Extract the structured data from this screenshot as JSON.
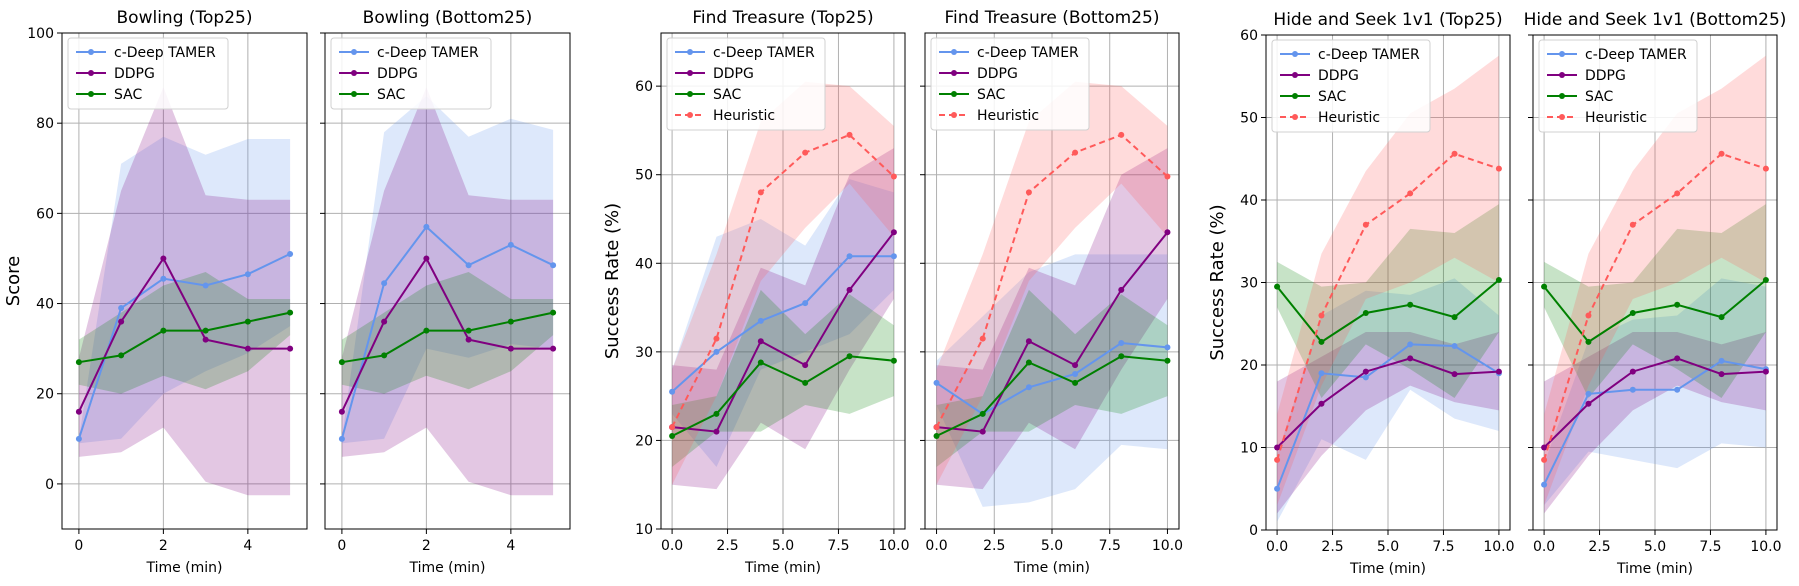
{
  "figure": {
    "description_title": "Six-panel line chart comparing c-Deep TAMER, DDPG, SAC and Heuristic"
  },
  "colors": {
    "c-Deep TAMER": "#6495ED",
    "DDPG": "#800080",
    "SAC": "#008000",
    "Heuristic": "#FF5A5A"
  },
  "chart_data": [
    {
      "type": "line",
      "title": "Bowling (Top25)",
      "xlabel": "Time (min)",
      "ylabel": "Score",
      "xlim": [
        -0.4,
        5.4
      ],
      "ylim": [
        -10,
        100
      ],
      "xticks": [
        0,
        2,
        4
      ],
      "xtick_labels": [
        "0",
        "2",
        "4"
      ],
      "yticks": [
        0,
        20,
        40,
        60,
        80,
        100
      ],
      "ytick_labels": [
        "0",
        "20",
        "40",
        "60",
        "80",
        "100"
      ],
      "legend": "top-left",
      "series": [
        {
          "name": "c-Deep TAMER",
          "x": [
            0,
            1,
            2,
            3,
            4,
            5
          ],
          "y": [
            10,
            39,
            45.5,
            44,
            46.5,
            51
          ],
          "lower": [
            9,
            10,
            20,
            25,
            29,
            35
          ],
          "upper": [
            10,
            71,
            77,
            73,
            76.5,
            76.5
          ]
        },
        {
          "name": "DDPG",
          "x": [
            0,
            1,
            2,
            3,
            4,
            5
          ],
          "y": [
            16,
            36,
            50,
            32,
            30,
            30
          ],
          "lower": [
            6,
            7,
            12.5,
            0.5,
            -2.5,
            -2.5
          ],
          "upper": [
            28,
            65,
            88,
            64,
            63,
            63
          ]
        },
        {
          "name": "SAC",
          "x": [
            0,
            1,
            2,
            3,
            4,
            5
          ],
          "y": [
            27,
            28.5,
            34,
            34,
            36,
            38
          ],
          "lower": [
            22,
            20,
            24,
            21,
            25,
            33
          ],
          "upper": [
            32,
            38,
            44,
            47,
            41,
            41
          ]
        }
      ]
    },
    {
      "type": "line",
      "title": "Bowling (Bottom25)",
      "xlabel": "Time (min)",
      "ylabel": "",
      "xlim": [
        -0.4,
        5.4
      ],
      "ylim": [
        -10,
        100
      ],
      "xticks": [
        0,
        2,
        4
      ],
      "xtick_labels": [
        "0",
        "2",
        "4"
      ],
      "yticks": [
        0,
        20,
        40,
        60,
        80,
        100
      ],
      "ytick_labels": [],
      "legend": "top-left",
      "series": [
        {
          "name": "c-Deep TAMER",
          "x": [
            0,
            1,
            2,
            3,
            4,
            5
          ],
          "y": [
            10,
            44.5,
            57,
            48.5,
            53,
            48.5
          ],
          "lower": [
            9,
            10,
            30,
            28,
            31,
            30
          ],
          "upper": [
            10,
            78,
            86,
            77,
            81,
            78.5
          ]
        },
        {
          "name": "DDPG",
          "x": [
            0,
            1,
            2,
            3,
            4,
            5
          ],
          "y": [
            16,
            36,
            50,
            32,
            30,
            30
          ],
          "lower": [
            6,
            7,
            12.5,
            0.5,
            -2.5,
            -2.5
          ],
          "upper": [
            28,
            65,
            88,
            64,
            63,
            63
          ]
        },
        {
          "name": "SAC",
          "x": [
            0,
            1,
            2,
            3,
            4,
            5
          ],
          "y": [
            27,
            28.5,
            34,
            34,
            36,
            38
          ],
          "lower": [
            22,
            20,
            24,
            21,
            25,
            33
          ],
          "upper": [
            32,
            38,
            44,
            47,
            41,
            41
          ]
        }
      ]
    },
    {
      "type": "line",
      "title": "Find Treasure (Top25)",
      "xlabel": "Time (min)",
      "ylabel": "Success Rate (%)",
      "xlim": [
        -0.5,
        10.5
      ],
      "ylim": [
        10,
        66
      ],
      "xticks": [
        0,
        2.5,
        5,
        7.5,
        10
      ],
      "xtick_labels": [
        "0.0",
        "2.5",
        "5.0",
        "7.5",
        "10.0"
      ],
      "yticks": [
        10,
        20,
        30,
        40,
        50,
        60
      ],
      "ytick_labels": [
        "10",
        "20",
        "30",
        "40",
        "50",
        "60"
      ],
      "legend": "top-left",
      "series": [
        {
          "name": "c-Deep TAMER",
          "x": [
            0,
            2,
            4,
            6,
            8,
            10
          ],
          "y": [
            25.5,
            30,
            33.5,
            35.5,
            40.8,
            40.8
          ],
          "lower": [
            23,
            17,
            28,
            30,
            32,
            37
          ],
          "upper": [
            28,
            43,
            45,
            42,
            49.5,
            48
          ]
        },
        {
          "name": "DDPG",
          "x": [
            0,
            2,
            4,
            6,
            8,
            10
          ],
          "y": [
            21.5,
            21,
            31.2,
            28.5,
            37,
            43.5
          ],
          "lower": [
            15,
            14.5,
            22,
            19,
            28,
            36
          ],
          "upper": [
            28.5,
            28,
            39.5,
            37.5,
            50,
            53
          ]
        },
        {
          "name": "SAC",
          "x": [
            0,
            2,
            4,
            6,
            8,
            10
          ],
          "y": [
            20.5,
            23,
            28.8,
            26.5,
            29.5,
            29
          ],
          "lower": [
            17,
            21,
            21,
            24,
            23,
            25
          ],
          "upper": [
            24,
            25,
            37,
            32,
            36.5,
            33
          ]
        },
        {
          "name": "Heuristic",
          "x": [
            0,
            2,
            4,
            6,
            8,
            10
          ],
          "y": [
            21.5,
            31.5,
            48,
            52.5,
            54.5,
            49.8
          ],
          "lower": [
            15,
            25,
            38,
            44,
            49,
            43
          ],
          "upper": [
            28,
            41,
            56,
            60.5,
            60,
            55.5
          ],
          "dashed": true
        }
      ]
    },
    {
      "type": "line",
      "title": "Find Treasure (Bottom25)",
      "xlabel": "Time (min)",
      "ylabel": "",
      "xlim": [
        -0.5,
        10.5
      ],
      "ylim": [
        10,
        66
      ],
      "xticks": [
        0,
        2.5,
        5,
        7.5,
        10
      ],
      "xtick_labels": [
        "0.0",
        "2.5",
        "5.0",
        "7.5",
        "10.0"
      ],
      "yticks": [
        10,
        20,
        30,
        40,
        50,
        60
      ],
      "ytick_labels": [],
      "legend": "top-left",
      "series": [
        {
          "name": "c-Deep TAMER",
          "x": [
            0,
            2,
            4,
            6,
            8,
            10
          ],
          "y": [
            26.5,
            23,
            26,
            27.5,
            31,
            30.5
          ],
          "lower": [
            24,
            12.5,
            13,
            14.5,
            19.5,
            19
          ],
          "upper": [
            29,
            34,
            39,
            41,
            41,
            41
          ]
        },
        {
          "name": "DDPG",
          "x": [
            0,
            2,
            4,
            6,
            8,
            10
          ],
          "y": [
            21.5,
            21,
            31.2,
            28.5,
            37,
            43.5
          ],
          "lower": [
            15,
            14.5,
            22,
            19,
            28,
            36
          ],
          "upper": [
            28.5,
            28,
            39.5,
            37.5,
            50,
            53
          ]
        },
        {
          "name": "SAC",
          "x": [
            0,
            2,
            4,
            6,
            8,
            10
          ],
          "y": [
            20.5,
            23,
            28.8,
            26.5,
            29.5,
            29
          ],
          "lower": [
            17,
            21,
            21,
            24,
            23,
            25
          ],
          "upper": [
            24,
            25,
            37,
            32,
            36.5,
            33
          ]
        },
        {
          "name": "Heuristic",
          "x": [
            0,
            2,
            4,
            6,
            8,
            10
          ],
          "y": [
            21.5,
            31.5,
            48,
            52.5,
            54.5,
            49.8
          ],
          "lower": [
            15,
            25,
            38,
            44,
            49,
            43
          ],
          "upper": [
            28,
            41,
            56,
            60.5,
            60,
            55.5
          ],
          "dashed": true
        }
      ]
    },
    {
      "type": "line",
      "title": "Hide and Seek 1v1 (Top25)",
      "xlabel": "Time (min)",
      "ylabel": "Success Rate (%)",
      "xlim": [
        -0.5,
        10.5
      ],
      "ylim": [
        0,
        60
      ],
      "xticks": [
        0,
        2.5,
        5,
        7.5,
        10
      ],
      "xtick_labels": [
        "0.0",
        "2.5",
        "5.0",
        "7.5",
        "10.0"
      ],
      "yticks": [
        0,
        10,
        20,
        30,
        40,
        50,
        60
      ],
      "ytick_labels": [
        "0",
        "10",
        "20",
        "30",
        "40",
        "50",
        "60"
      ],
      "legend": "top-left",
      "series": [
        {
          "name": "c-Deep TAMER",
          "x": [
            0,
            2,
            4,
            6,
            8,
            10
          ],
          "y": [
            5,
            19,
            18.5,
            22.5,
            22.3,
            19
          ],
          "lower": [
            1,
            11,
            8.5,
            17,
            13.5,
            12
          ],
          "upper": [
            9,
            26,
            29,
            28.5,
            30.5,
            26
          ]
        },
        {
          "name": "DDPG",
          "x": [
            0,
            2,
            4,
            6,
            8,
            10
          ],
          "y": [
            10,
            15.3,
            19.2,
            20.8,
            18.9,
            19.2
          ],
          "lower": [
            2,
            9,
            14.5,
            17.5,
            15.5,
            14.5
          ],
          "upper": [
            18,
            21,
            24,
            24,
            22.5,
            24
          ]
        },
        {
          "name": "SAC",
          "x": [
            0,
            2,
            4,
            6,
            8,
            10
          ],
          "y": [
            29.5,
            22.8,
            26.3,
            27.3,
            25.8,
            30.3
          ],
          "lower": [
            27,
            16,
            22.5,
            19.5,
            16,
            24
          ],
          "upper": [
            32.5,
            29.5,
            30,
            36.5,
            36,
            39.5
          ]
        },
        {
          "name": "Heuristic",
          "x": [
            0,
            2,
            4,
            6,
            8,
            10
          ],
          "y": [
            8.5,
            26,
            37,
            40.8,
            45.6,
            43.8
          ],
          "lower": [
            3,
            17.5,
            28,
            30,
            33,
            30
          ],
          "upper": [
            14,
            33.5,
            43.5,
            50.5,
            53.5,
            57.5
          ],
          "dashed": true
        }
      ]
    },
    {
      "type": "line",
      "title": "Hide and Seek 1v1 (Bottom25)",
      "xlabel": "Time (min)",
      "ylabel": "",
      "xlim": [
        -0.5,
        10.5
      ],
      "ylim": [
        0,
        60
      ],
      "xticks": [
        0,
        2.5,
        5,
        7.5,
        10
      ],
      "xtick_labels": [
        "0.0",
        "2.5",
        "5.0",
        "7.5",
        "10.0"
      ],
      "yticks": [
        0,
        10,
        20,
        30,
        40,
        50,
        60
      ],
      "ytick_labels": [],
      "legend": "top-left",
      "series": [
        {
          "name": "c-Deep TAMER",
          "x": [
            0,
            2,
            4,
            6,
            8,
            10
          ],
          "y": [
            5.5,
            16.5,
            17,
            17,
            20.5,
            19.5
          ],
          "lower": [
            3,
            9.5,
            8.5,
            7.5,
            10.5,
            10
          ],
          "upper": [
            8,
            23,
            25.5,
            26,
            30.5,
            29.5
          ]
        },
        {
          "name": "DDPG",
          "x": [
            0,
            2,
            4,
            6,
            8,
            10
          ],
          "y": [
            10,
            15.3,
            19.2,
            20.8,
            18.9,
            19.2
          ],
          "lower": [
            2,
            9,
            14.5,
            17.5,
            15.5,
            14.5
          ],
          "upper": [
            18,
            21,
            24,
            24,
            22.5,
            24
          ]
        },
        {
          "name": "SAC",
          "x": [
            0,
            2,
            4,
            6,
            8,
            10
          ],
          "y": [
            29.5,
            22.8,
            26.3,
            27.3,
            25.8,
            30.3
          ],
          "lower": [
            27,
            16,
            22.5,
            19.5,
            16,
            24
          ],
          "upper": [
            32.5,
            29.5,
            30,
            36.5,
            36,
            39.5
          ]
        },
        {
          "name": "Heuristic",
          "x": [
            0,
            2,
            4,
            6,
            8,
            10
          ],
          "y": [
            8.5,
            26,
            37,
            40.8,
            45.6,
            43.8
          ],
          "lower": [
            3,
            17.5,
            28,
            30,
            33,
            30
          ],
          "upper": [
            14,
            33.5,
            43.5,
            50.5,
            53.5,
            57.5
          ],
          "dashed": true
        }
      ]
    }
  ]
}
